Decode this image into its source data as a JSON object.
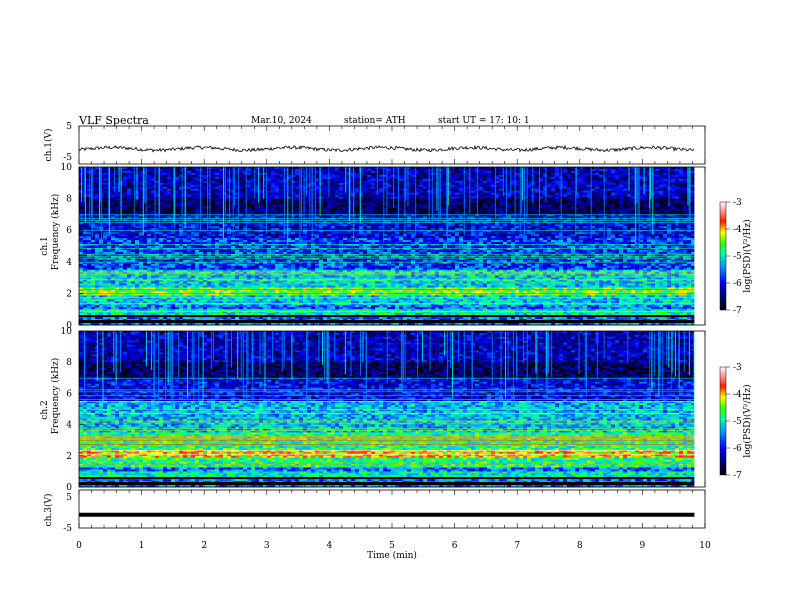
{
  "header": {
    "title": "VLF  Spectra",
    "date": "Mar.10, 2024",
    "station": "station= ATH",
    "start": "start  UT  =    17: 10: 1"
  },
  "chart_data": [
    {
      "type": "line",
      "panel": "ch1-waveform",
      "ylabel": "ch.1(V)",
      "ylim": [
        -5,
        5
      ],
      "yticks": [
        "5",
        "-5"
      ],
      "baseline_v": -1.0,
      "color": "#000000"
    },
    {
      "type": "heatmap",
      "panel": "ch1-spectrogram",
      "ylabel": "ch.1\nFrequency  (kHz)",
      "ylim": [
        0,
        10
      ],
      "yticks": [
        "0",
        "2",
        "4",
        "6",
        "8",
        "10"
      ],
      "colorbar": {
        "label": "log(PSD)(V²/Hz)",
        "range": [
          -7,
          -3
        ],
        "ticks": [
          "-3",
          "-4",
          "-5",
          "-6",
          "-7"
        ]
      }
    },
    {
      "type": "heatmap",
      "panel": "ch2-spectrogram",
      "ylabel": "ch.2\nFrequency  (kHz)",
      "ylim": [
        0,
        10
      ],
      "yticks": [
        "0",
        "2",
        "4",
        "6",
        "8",
        "10"
      ],
      "colorbar": {
        "label": "log(PSD)(V²/Hz)",
        "range": [
          -7,
          -3
        ],
        "ticks": [
          "-3",
          "-4",
          "-5",
          "-6",
          "-7"
        ]
      }
    },
    {
      "type": "line",
      "panel": "ch3-waveform",
      "ylabel": "ch.3(V)",
      "ylim": [
        -5,
        5
      ],
      "yticks": [
        "5",
        "-5"
      ],
      "baseline_v": -1.5,
      "color": "#000000"
    }
  ],
  "xaxis": {
    "label": "Time  (min)",
    "range": [
      0,
      10
    ],
    "ticks": [
      "0",
      "1",
      "2",
      "3",
      "4",
      "5",
      "6",
      "7",
      "8",
      "9",
      "10"
    ],
    "data_end": 9.83
  },
  "colors": {
    "colormap": [
      "#000000",
      "#00002a",
      "#0000ff",
      "#00c8ff",
      "#00ff80",
      "#ffff00",
      "#ff0000",
      "#ffffff"
    ]
  }
}
